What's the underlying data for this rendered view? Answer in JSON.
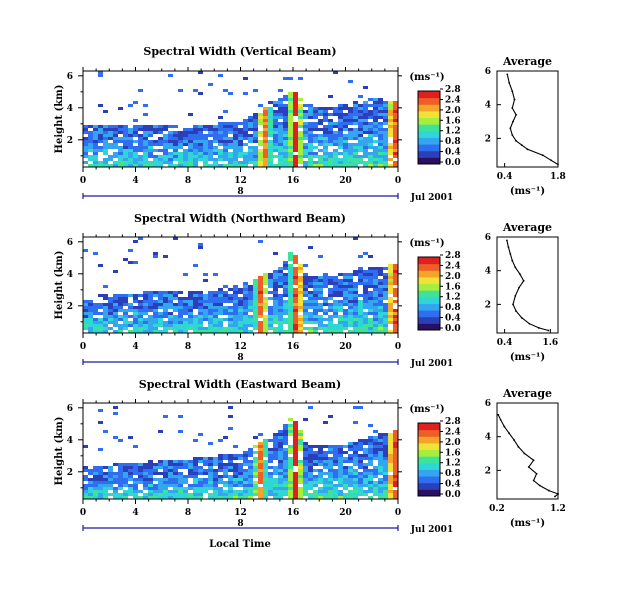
{
  "colorscale": [
    "#2a1060",
    "#2b3fb8",
    "#2f6ef0",
    "#34a6f0",
    "#2fd6d6",
    "#3fe29a",
    "#a6ee3c",
    "#f0e23a",
    "#f5a42a",
    "#ee5f28",
    "#e02020"
  ],
  "blank_color": "#ffffff",
  "axis_color": "#1a1aa0",
  "panels": [
    {
      "title": "Spectral Width (Vertical Beam)",
      "ylabel": "Height (km)",
      "yticks": [
        "2",
        "4",
        "6"
      ],
      "xticks": [
        "0",
        "4",
        "8",
        "12",
        "16",
        "20",
        "0"
      ],
      "date_tick": "8",
      "date_label": "Jul 2001",
      "colorbar": {
        "unit": "(ms⁻¹)",
        "ticks": [
          "0.0",
          "0.4",
          "0.8",
          "1.2",
          "1.6",
          "2.0",
          "2.4",
          "2.8"
        ]
      },
      "average": {
        "title": "Average",
        "xticks": [
          "0.4",
          "1.8"
        ],
        "yticks": [
          "2",
          "4",
          "6"
        ],
        "xlabel": "(ms⁻¹)"
      }
    },
    {
      "title": "Spectral Width (Northward Beam)",
      "ylabel": "Height (km)",
      "yticks": [
        "2",
        "4",
        "6"
      ],
      "xticks": [
        "0",
        "4",
        "8",
        "12",
        "16",
        "20",
        "0"
      ],
      "date_tick": "8",
      "date_label": "Jul 2001",
      "colorbar": {
        "unit": "(ms⁻¹)",
        "ticks": [
          "0.0",
          "0.4",
          "0.8",
          "1.2",
          "1.6",
          "2.0",
          "2.4",
          "2.8"
        ]
      },
      "average": {
        "title": "Average",
        "xticks": [
          "0.4",
          "1.6"
        ],
        "yticks": [
          "2",
          "4",
          "6"
        ],
        "xlabel": "(ms⁻¹)"
      }
    },
    {
      "title": "Spectral Width (Eastward Beam)",
      "ylabel": "Height (km)",
      "yticks": [
        "2",
        "4",
        "6"
      ],
      "xticks": [
        "0",
        "4",
        "8",
        "12",
        "16",
        "20",
        "0"
      ],
      "date_tick": "8",
      "date_label": "Jul 2001",
      "colorbar": {
        "unit": "(ms⁻¹)",
        "ticks": [
          "0.0",
          "0.4",
          "0.8",
          "1.2",
          "1.6",
          "2.0",
          "2.4",
          "2.8"
        ]
      },
      "average": {
        "title": "Average",
        "xticks": [
          "0.2",
          "1.2"
        ],
        "yticks": [
          "2",
          "4",
          "6"
        ],
        "xlabel": "(ms⁻¹)"
      }
    }
  ],
  "xlabel": "Local Time",
  "chart_data": [
    {
      "type": "heatmap",
      "title": "Spectral Width (Vertical Beam)",
      "xlabel": "",
      "ylabel": "Height (km)",
      "x_unit": "local time (h), 8 Jul 2001",
      "xlim": [
        0,
        24
      ],
      "ylim": [
        0.3,
        6.3
      ],
      "color_range": [
        0.0,
        2.8
      ],
      "cutoff_km": [
        [
          0,
          3.0
        ],
        [
          4,
          3.0
        ],
        [
          8,
          2.8
        ],
        [
          10,
          3.0
        ],
        [
          12,
          3.2
        ],
        [
          13,
          3.6
        ],
        [
          14,
          4.0
        ],
        [
          15,
          4.5
        ],
        [
          16,
          5.2
        ],
        [
          17,
          4.2
        ],
        [
          18,
          4.0
        ],
        [
          20,
          4.2
        ],
        [
          22,
          4.6
        ],
        [
          24,
          4.4
        ]
      ],
      "high_width_events": [
        {
          "time": 13.8,
          "value": 2.6
        },
        {
          "time": 16.2,
          "value": 2.8
        },
        {
          "time": 23.7,
          "value": 2.8
        }
      ]
    },
    {
      "type": "line",
      "title": "Average",
      "xlabel": "(ms⁻¹)",
      "ylabel": "",
      "xlim": [
        0.2,
        1.8
      ],
      "ylim": [
        0.3,
        6.0
      ],
      "x": [
        1.8,
        1.62,
        1.4,
        1.0,
        0.85,
        0.7,
        0.6,
        0.55,
        0.62,
        0.7,
        0.6,
        0.66,
        0.6,
        0.52,
        0.47
      ],
      "y": [
        0.45,
        0.7,
        1.0,
        1.35,
        1.6,
        1.85,
        2.2,
        2.6,
        3.0,
        3.4,
        3.8,
        4.3,
        4.8,
        5.3,
        5.8
      ]
    },
    {
      "type": "heatmap",
      "title": "Spectral Width (Northward Beam)",
      "xlabel": "",
      "ylabel": "Height (km)",
      "x_unit": "local time (h), 8 Jul 2001",
      "xlim": [
        0,
        24
      ],
      "ylim": [
        0.3,
        6.3
      ],
      "color_range": [
        0.0,
        2.8
      ],
      "cutoff_km": [
        [
          0,
          2.6
        ],
        [
          4,
          2.8
        ],
        [
          8,
          3.0
        ],
        [
          10,
          3.0
        ],
        [
          12,
          3.3
        ],
        [
          13,
          3.6
        ],
        [
          14,
          4.0
        ],
        [
          15,
          4.3
        ],
        [
          16,
          5.6
        ],
        [
          17,
          4.0
        ],
        [
          18,
          3.8
        ],
        [
          20,
          4.0
        ],
        [
          22,
          4.4
        ],
        [
          24,
          4.6
        ]
      ],
      "high_width_events": [
        {
          "time": 13.6,
          "value": 2.6
        },
        {
          "time": 16.3,
          "value": 2.8
        },
        {
          "time": 23.7,
          "value": 2.8
        }
      ]
    },
    {
      "type": "line",
      "title": "Average",
      "xlabel": "(ms⁻¹)",
      "ylabel": "",
      "xlim": [
        0.2,
        1.8
      ],
      "ylim": [
        0.3,
        6.0
      ],
      "x": [
        1.55,
        1.3,
        1.05,
        0.85,
        0.7,
        0.62,
        0.68,
        0.78,
        0.9,
        0.8,
        0.68,
        0.6,
        0.55,
        0.5,
        0.46
      ],
      "y": [
        0.45,
        0.6,
        0.85,
        1.2,
        1.6,
        2.0,
        2.5,
        3.0,
        3.4,
        3.8,
        4.2,
        4.6,
        5.0,
        5.4,
        5.8
      ]
    },
    {
      "type": "heatmap",
      "title": "Spectral Width (Eastward Beam)",
      "xlabel": "Local Time",
      "ylabel": "Height (km)",
      "x_unit": "local time (h), 8 Jul 2001",
      "xlim": [
        0,
        24
      ],
      "ylim": [
        0.3,
        6.3
      ],
      "color_range": [
        0.0,
        2.8
      ],
      "cutoff_km": [
        [
          0,
          2.4
        ],
        [
          4,
          2.5
        ],
        [
          8,
          2.8
        ],
        [
          10,
          3.0
        ],
        [
          12,
          3.2
        ],
        [
          13,
          3.6
        ],
        [
          14,
          4.0
        ],
        [
          15,
          4.5
        ],
        [
          16,
          5.6
        ],
        [
          17,
          3.8
        ],
        [
          18,
          3.6
        ],
        [
          20,
          3.8
        ],
        [
          22,
          4.2
        ],
        [
          24,
          4.6
        ]
      ],
      "high_width_events": [
        {
          "time": 13.5,
          "value": 2.4
        },
        {
          "time": 16.2,
          "value": 2.8
        },
        {
          "time": 23.7,
          "value": 2.8
        }
      ]
    },
    {
      "type": "line",
      "title": "Average",
      "xlabel": "(ms⁻¹)",
      "ylabel": "",
      "xlim": [
        0.2,
        1.2
      ],
      "ylim": [
        0.3,
        6.0
      ],
      "x": [
        1.15,
        1.2,
        1.05,
        0.9,
        0.8,
        0.85,
        0.72,
        0.8,
        0.65,
        0.55,
        0.48,
        0.4,
        0.32,
        0.26,
        0.22
      ],
      "y": [
        0.45,
        0.6,
        0.8,
        1.1,
        1.4,
        1.8,
        2.2,
        2.6,
        3.0,
        3.4,
        3.8,
        4.2,
        4.6,
        5.0,
        5.3
      ]
    }
  ]
}
